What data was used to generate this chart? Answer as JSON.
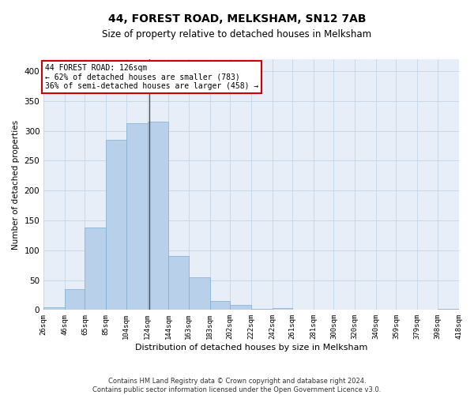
{
  "title": "44, FOREST ROAD, MELKSHAM, SN12 7AB",
  "subtitle": "Size of property relative to detached houses in Melksham",
  "xlabel": "Distribution of detached houses by size in Melksham",
  "ylabel": "Number of detached properties",
  "bar_color": "#b8d0ea",
  "bar_edge_color": "#7aafd4",
  "annotation_box_color": "#cc0000",
  "annotation_text": "44 FOREST ROAD: 126sqm\n← 62% of detached houses are smaller (783)\n36% of semi-detached houses are larger (458) →",
  "property_line_x": 126,
  "bin_edges": [
    26,
    46,
    65,
    85,
    104,
    124,
    144,
    163,
    183,
    202,
    222,
    242,
    261,
    281,
    300,
    320,
    340,
    359,
    379,
    398,
    418
  ],
  "bar_heights": [
    5,
    35,
    138,
    285,
    313,
    315,
    90,
    55,
    15,
    8,
    2,
    3,
    0,
    0,
    1,
    0,
    1,
    0,
    0,
    2
  ],
  "xlim_left": 26,
  "xlim_right": 418,
  "ylim_top": 420,
  "ylim_bottom": 0,
  "yticks": [
    0,
    50,
    100,
    150,
    200,
    250,
    300,
    350,
    400
  ],
  "footer_text": "Contains HM Land Registry data © Crown copyright and database right 2024.\nContains public sector information licensed under the Open Government Licence v3.0.",
  "tick_labels": [
    "26sqm",
    "46sqm",
    "65sqm",
    "85sqm",
    "104sqm",
    "124sqm",
    "144sqm",
    "163sqm",
    "183sqm",
    "202sqm",
    "222sqm",
    "242sqm",
    "261sqm",
    "281sqm",
    "300sqm",
    "320sqm",
    "340sqm",
    "359sqm",
    "379sqm",
    "398sqm",
    "418sqm"
  ],
  "title_fontsize": 10,
  "subtitle_fontsize": 8.5,
  "ylabel_fontsize": 7.5,
  "xlabel_fontsize": 8,
  "tick_fontsize": 6.5,
  "ytick_fontsize": 7.5,
  "annotation_fontsize": 7,
  "footer_fontsize": 6
}
